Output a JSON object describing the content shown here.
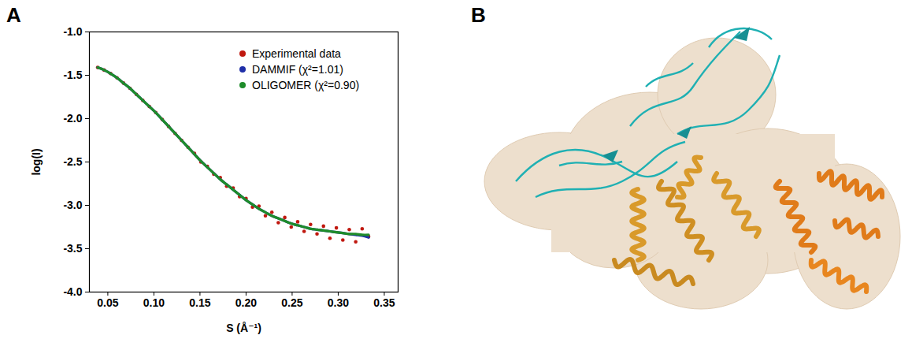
{
  "panel_labels": [
    "A",
    "B"
  ],
  "chart_data": {
    "type": "scatter",
    "x_label": "S (Å⁻¹)",
    "y_label": "log(I)",
    "xlim": [
      0.03,
      0.365
    ],
    "ylim": [
      -4.0,
      -1.0
    ],
    "xticks": [
      {
        "value": 0.05,
        "label": "0.05"
      },
      {
        "value": 0.1,
        "label": "0.10"
      },
      {
        "value": 0.15,
        "label": "0.15"
      },
      {
        "value": 0.2,
        "label": "0.20"
      },
      {
        "value": 0.25,
        "label": "0.25"
      },
      {
        "value": 0.3,
        "label": "0.30"
      },
      {
        "value": 0.35,
        "label": "0.35"
      }
    ],
    "yticks": [
      {
        "value": -4,
        "label": "-4.0"
      },
      {
        "value": -3.5,
        "label": "-3.5"
      },
      {
        "value": -3,
        "label": "-3.0"
      },
      {
        "value": -2.5,
        "label": "-2.5"
      },
      {
        "value": -2,
        "label": "-2.0"
      },
      {
        "value": -1.5,
        "label": "-1.5"
      },
      {
        "value": -1,
        "label": "-1.0"
      }
    ],
    "grid": false,
    "legend": "upper right",
    "x": [
      0.039,
      0.046,
      0.053,
      0.06,
      0.067,
      0.074,
      0.081,
      0.088,
      0.095,
      0.102,
      0.109,
      0.116,
      0.123,
      0.13,
      0.137,
      0.144,
      0.151,
      0.158,
      0.165,
      0.172,
      0.179,
      0.186,
      0.193,
      0.2,
      0.207,
      0.214,
      0.221,
      0.228,
      0.235,
      0.242,
      0.249,
      0.256,
      0.263,
      0.27,
      0.277,
      0.284,
      0.291,
      0.298,
      0.305,
      0.312,
      0.319,
      0.326,
      0.333
    ],
    "series": [
      {
        "name": "Experimental data",
        "type": "scatter",
        "marker": "circle",
        "color": "#c0180f",
        "values": [
          -1.41,
          -1.44,
          -1.48,
          -1.53,
          -1.59,
          -1.65,
          -1.72,
          -1.79,
          -1.86,
          -1.93,
          -2.01,
          -2.09,
          -2.17,
          -2.25,
          -2.33,
          -2.4,
          -2.5,
          -2.55,
          -2.64,
          -2.68,
          -2.78,
          -2.8,
          -2.9,
          -2.92,
          -3.02,
          -3.01,
          -3.12,
          -3.08,
          -3.2,
          -3.14,
          -3.25,
          -3.19,
          -3.3,
          -3.22,
          -3.33,
          -3.24,
          -3.38,
          -3.26,
          -3.4,
          -3.28,
          -3.42,
          -3.27,
          -3.36
        ]
      },
      {
        "name": "DAMMIF (χ²=1.01)",
        "type": "line",
        "line_style": "solid",
        "color": "#1f2fa8",
        "values": [
          -1.41,
          -1.44,
          -1.48,
          -1.53,
          -1.59,
          -1.65,
          -1.72,
          -1.79,
          -1.86,
          -1.93,
          -2.01,
          -2.09,
          -2.17,
          -2.25,
          -2.33,
          -2.41,
          -2.49,
          -2.56,
          -2.63,
          -2.7,
          -2.76,
          -2.82,
          -2.88,
          -2.94,
          -2.99,
          -3.04,
          -3.08,
          -3.12,
          -3.15,
          -3.18,
          -3.21,
          -3.23,
          -3.25,
          -3.27,
          -3.28,
          -3.29,
          -3.3,
          -3.31,
          -3.32,
          -3.33,
          -3.34,
          -3.35,
          -3.37
        ]
      },
      {
        "name": "OLIGOMER (χ²=0.90)",
        "type": "line",
        "line_style": "solid",
        "color": "#1e8c2a",
        "values": [
          -1.41,
          -1.44,
          -1.48,
          -1.53,
          -1.59,
          -1.65,
          -1.72,
          -1.79,
          -1.86,
          -1.93,
          -2.01,
          -2.09,
          -2.17,
          -2.25,
          -2.33,
          -2.41,
          -2.49,
          -2.56,
          -2.63,
          -2.7,
          -2.76,
          -2.82,
          -2.88,
          -2.94,
          -2.99,
          -3.04,
          -3.08,
          -3.12,
          -3.15,
          -3.18,
          -3.21,
          -3.23,
          -3.25,
          -3.27,
          -3.28,
          -3.29,
          -3.3,
          -3.31,
          -3.32,
          -3.33,
          -3.33,
          -3.34,
          -3.34
        ]
      }
    ]
  }
}
